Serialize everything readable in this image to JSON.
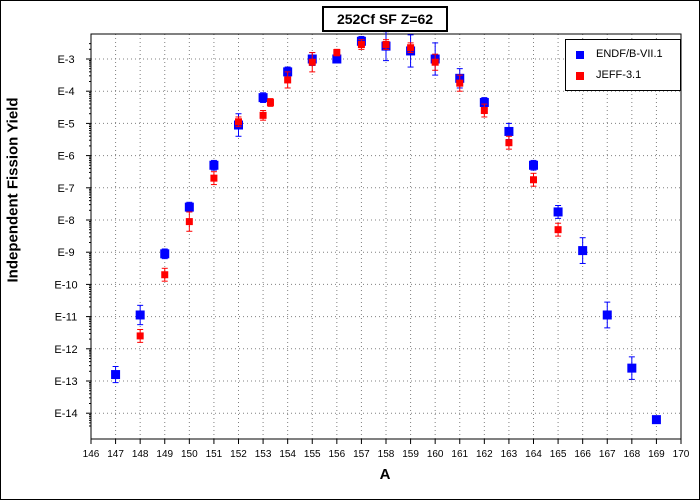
{
  "chart_data": {
    "type": "scatter",
    "title": "252Cf SF Z=62",
    "xlabel": "A",
    "ylabel": "Independent Fission Yield",
    "xlim": [
      146,
      170
    ],
    "ylim_exponent": [
      -14.5,
      -2.5
    ],
    "y_scale": "log",
    "x_ticks": [
      "146",
      "147",
      "148",
      "149",
      "150",
      "151",
      "152",
      "153",
      "154",
      "155",
      "156",
      "157",
      "158",
      "159",
      "160",
      "161",
      "162",
      "163",
      "164",
      "165",
      "166",
      "167",
      "168",
      "169",
      "170"
    ],
    "y_ticks": [
      "E-3",
      "E-4",
      "E-5",
      "E-6",
      "E-7",
      "E-8",
      "E-9",
      "E-10",
      "E-11",
      "E-12",
      "E-13",
      "E-14"
    ],
    "grid": true,
    "legend_position": "top-right",
    "series": [
      {
        "name": "ENDF/B-VII.1",
        "color": "#0000ff",
        "marker": "square",
        "points": [
          {
            "x": 147,
            "y_exp": -12.8,
            "err": 0.25
          },
          {
            "x": 148,
            "y_exp": -10.95,
            "err": 0.3
          },
          {
            "x": 149,
            "y_exp": -9.05,
            "err": 0.15
          },
          {
            "x": 150,
            "y_exp": -7.6,
            "err": 0.15
          },
          {
            "x": 151,
            "y_exp": -6.3,
            "err": 0.15
          },
          {
            "x": 152,
            "y_exp": -5.05,
            "err": 0.35
          },
          {
            "x": 153,
            "y_exp": -4.2,
            "err": 0.15
          },
          {
            "x": 154,
            "y_exp": -3.4,
            "err": 0.15
          },
          {
            "x": 155,
            "y_exp": -3.0,
            "err": 0.2
          },
          {
            "x": 156,
            "y_exp": -3.0,
            "err": 0.0
          },
          {
            "x": 157,
            "y_exp": -2.45,
            "err": 0.15
          },
          {
            "x": 158,
            "y_exp": -2.6,
            "err": 0.45
          },
          {
            "x": 159,
            "y_exp": -2.75,
            "err": 0.5
          },
          {
            "x": 160,
            "y_exp": -3.0,
            "err": 0.5
          },
          {
            "x": 161,
            "y_exp": -3.6,
            "err": 0.3
          },
          {
            "x": 162,
            "y_exp": -4.35,
            "err": 0.15
          },
          {
            "x": 163,
            "y_exp": -5.25,
            "err": 0.25
          },
          {
            "x": 164,
            "y_exp": -6.3,
            "err": 0.15
          },
          {
            "x": 165,
            "y_exp": -7.75,
            "err": 0.2
          },
          {
            "x": 166,
            "y_exp": -8.95,
            "err": 0.4
          },
          {
            "x": 167,
            "y_exp": -10.95,
            "err": 0.4
          },
          {
            "x": 168,
            "y_exp": -12.6,
            "err": 0.35
          },
          {
            "x": 169,
            "y_exp": -14.2,
            "err": 0.1
          }
        ]
      },
      {
        "name": "JEFF-3.1",
        "color": "#ff0000",
        "marker": "square",
        "points": [
          {
            "x": 148,
            "y_exp": -11.6,
            "err": 0.2
          },
          {
            "x": 149,
            "y_exp": -9.7,
            "err": 0.2
          },
          {
            "x": 150,
            "y_exp": -8.05,
            "err": 0.3
          },
          {
            "x": 151,
            "y_exp": -6.7,
            "err": 0.2
          },
          {
            "x": 152,
            "y_exp": -4.95,
            "err": 0.15
          },
          {
            "x": 153,
            "y_exp": -4.75,
            "err": 0.15
          },
          {
            "x": 153.3,
            "y_exp": -4.35,
            "err": 0.12
          },
          {
            "x": 154,
            "y_exp": -3.65,
            "err": 0.25
          },
          {
            "x": 155,
            "y_exp": -3.1,
            "err": 0.3
          },
          {
            "x": 156,
            "y_exp": -2.8,
            "err": 0.1
          },
          {
            "x": 157,
            "y_exp": -2.55,
            "err": 0.15
          },
          {
            "x": 158,
            "y_exp": -2.55,
            "err": 0.15
          },
          {
            "x": 159,
            "y_exp": -2.65,
            "err": 0.15
          },
          {
            "x": 160,
            "y_exp": -3.1,
            "err": 0.25
          },
          {
            "x": 161,
            "y_exp": -3.75,
            "err": 0.25
          },
          {
            "x": 162,
            "y_exp": -4.6,
            "err": 0.2
          },
          {
            "x": 163,
            "y_exp": -5.6,
            "err": 0.2
          },
          {
            "x": 164,
            "y_exp": -6.75,
            "err": 0.2
          },
          {
            "x": 165,
            "y_exp": -8.3,
            "err": 0.2
          }
        ]
      }
    ]
  }
}
